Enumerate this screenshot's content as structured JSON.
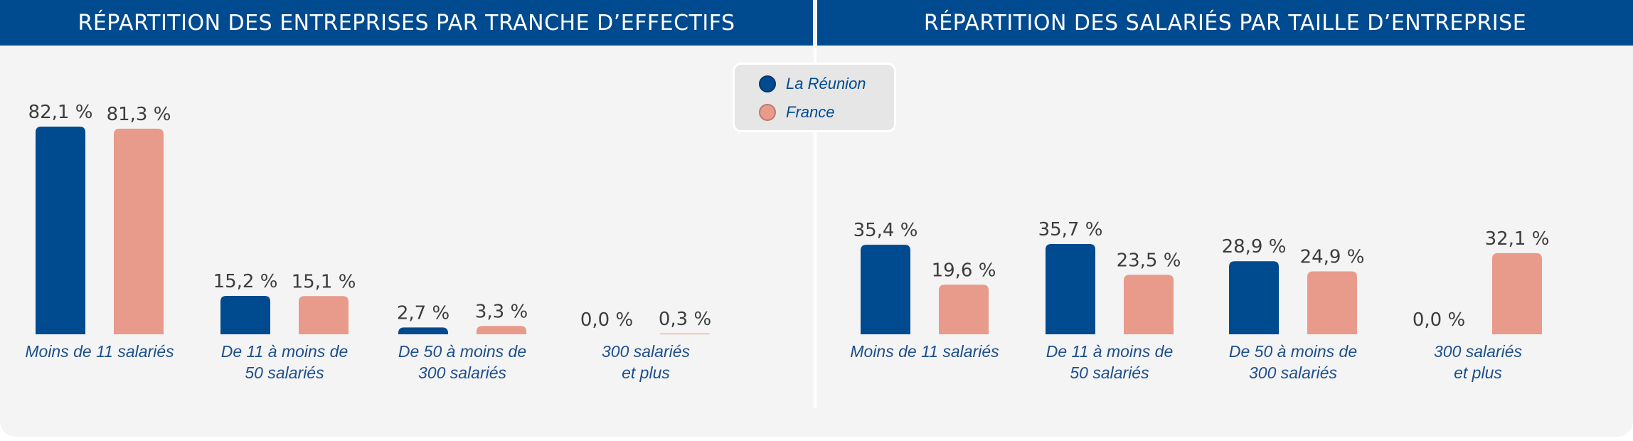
{
  "headers": {
    "left": "RÉPARTITION DES ENTREPRISES PAR TRANCHE D’EFFECTIFS",
    "right": "RÉPARTITION DES SALARIÉS PAR TAILLE D’ENTREPRISE"
  },
  "legend": [
    {
      "name": "La Réunion",
      "color": "#004a8f"
    },
    {
      "name": "France",
      "color": "#e89a8b"
    }
  ],
  "chart_data": [
    {
      "type": "bar",
      "title": "RÉPARTITION DES ENTREPRISES PAR TRANCHE D’EFFECTIFS",
      "categories": [
        [
          "Moins de 11 salariés"
        ],
        [
          "De 11 à moins de",
          "50 salariés"
        ],
        [
          "De 50 à moins de",
          "300 salariés"
        ],
        [
          "300 salariés",
          "et plus"
        ]
      ],
      "series": [
        {
          "name": "La Réunion",
          "values": [
            82.1,
            15.2,
            2.7,
            0.0
          ],
          "labels": [
            "82,1 %",
            "15,2 %",
            "2,7 %",
            "0,0 %"
          ]
        },
        {
          "name": "France",
          "values": [
            81.3,
            15.1,
            3.3,
            0.3
          ],
          "labels": [
            "81,3 %",
            "15,1 %",
            "3,3 %",
            "0,3 %"
          ]
        }
      ],
      "ylim": [
        0,
        82.1
      ]
    },
    {
      "type": "bar",
      "title": "RÉPARTITION DES SALARIÉS PAR TAILLE D’ENTREPRISE",
      "categories": [
        [
          "Moins de 11 salariés"
        ],
        [
          "De 11 à moins de",
          "50 salariés"
        ],
        [
          "De 50 à moins de",
          "300 salariés"
        ],
        [
          "300 salariés",
          "et plus"
        ]
      ],
      "series": [
        {
          "name": "La Réunion",
          "values": [
            35.4,
            35.7,
            28.9,
            0.0
          ],
          "labels": [
            "35,4 %",
            "35,7 %",
            "28,9 %",
            "0,0 %"
          ]
        },
        {
          "name": "France",
          "values": [
            19.6,
            23.5,
            24.9,
            32.1
          ],
          "labels": [
            "19,6 %",
            "23,5 %",
            "24,9 %",
            "32,1 %"
          ]
        }
      ],
      "ylim": [
        0,
        82.1
      ]
    }
  ]
}
